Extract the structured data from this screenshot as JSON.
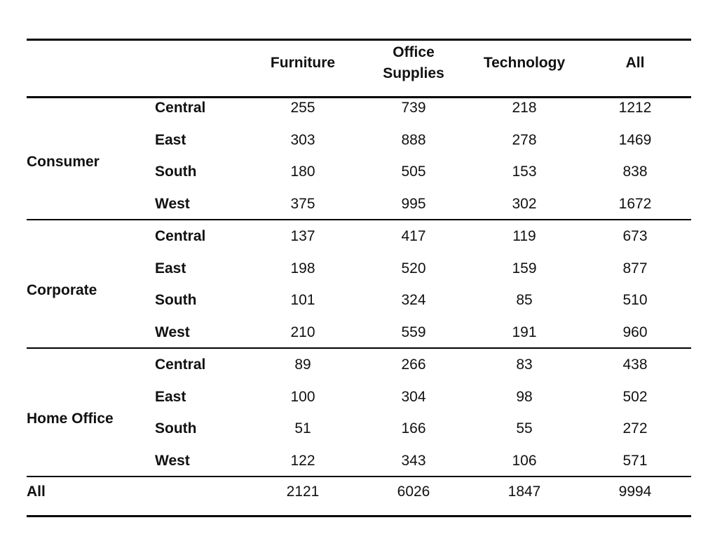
{
  "chart_data": {
    "type": "table",
    "columns": [
      "Furniture",
      "Office Supplies",
      "Technology",
      "All"
    ],
    "column_header_lines": [
      [
        "Furniture"
      ],
      [
        "Office",
        "Supplies"
      ],
      [
        "Technology"
      ],
      [
        "All"
      ]
    ],
    "groups": [
      {
        "segment": "Consumer",
        "rows": [
          {
            "region": "Central",
            "values": [
              "255",
              "739",
              "218",
              "1212"
            ]
          },
          {
            "region": "East",
            "values": [
              "303",
              "888",
              "278",
              "1469"
            ]
          },
          {
            "region": "South",
            "values": [
              "180",
              "505",
              "153",
              "838"
            ]
          },
          {
            "region": "West",
            "values": [
              "375",
              "995",
              "302",
              "1672"
            ]
          }
        ]
      },
      {
        "segment": "Corporate",
        "rows": [
          {
            "region": "Central",
            "values": [
              "137",
              "417",
              "119",
              "673"
            ]
          },
          {
            "region": "East",
            "values": [
              "198",
              "520",
              "159",
              "877"
            ]
          },
          {
            "region": "South",
            "values": [
              "101",
              "324",
              "85",
              "510"
            ]
          },
          {
            "region": "West",
            "values": [
              "210",
              "559",
              "191",
              "960"
            ]
          }
        ]
      },
      {
        "segment": "Home Office",
        "rows": [
          {
            "region": "Central",
            "values": [
              "89",
              "266",
              "83",
              "438"
            ]
          },
          {
            "region": "East",
            "values": [
              "100",
              "304",
              "98",
              "502"
            ]
          },
          {
            "region": "South",
            "values": [
              "51",
              "166",
              "55",
              "272"
            ]
          },
          {
            "region": "West",
            "values": [
              "122",
              "343",
              "106",
              "571"
            ]
          }
        ]
      }
    ],
    "total_row": {
      "label": "All",
      "values": [
        "2121",
        "6026",
        "1847",
        "9994"
      ]
    }
  }
}
